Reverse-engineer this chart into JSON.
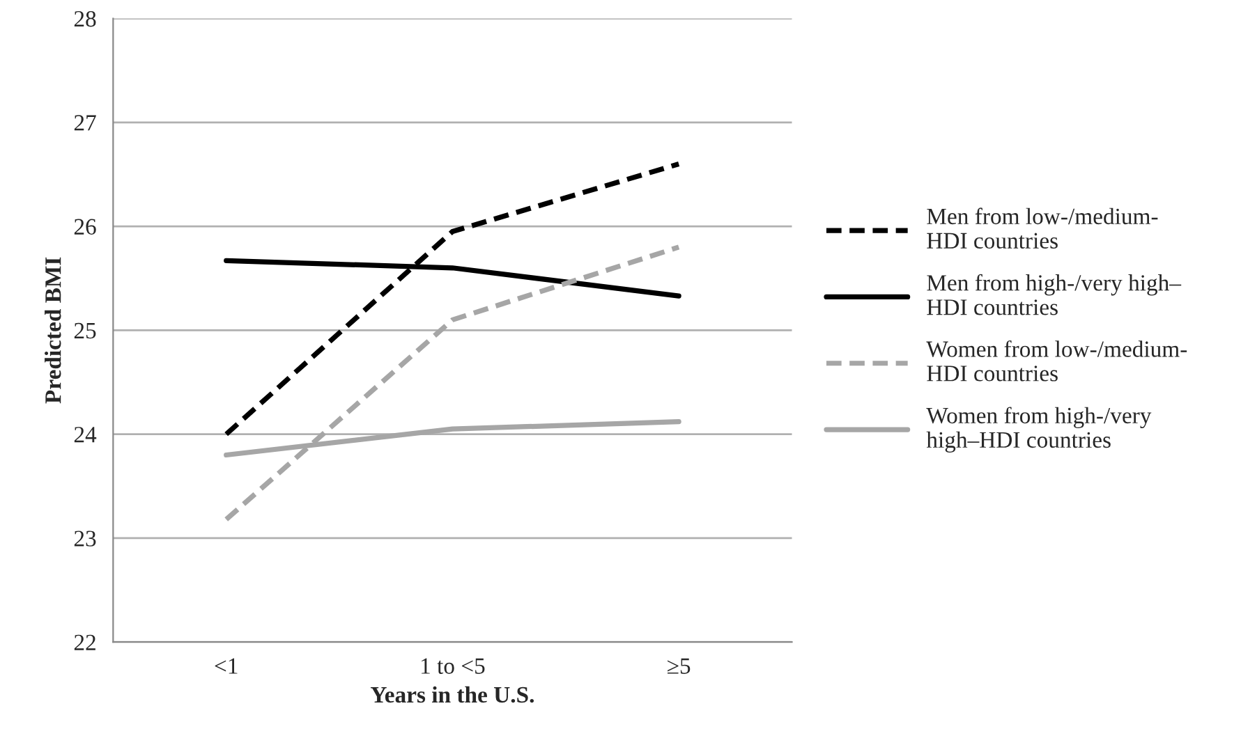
{
  "chart_data": {
    "type": "line",
    "xlabel": "Years in the U.S.",
    "ylabel": "Predicted BMI",
    "categories": [
      "<1",
      "1 to <5",
      "≥5"
    ],
    "series": [
      {
        "name": "Men from low-/medium-\nHDI countries",
        "color": "#000000",
        "line_style": "dashed",
        "values": [
          24.0,
          25.95,
          26.6
        ]
      },
      {
        "name": "Men from high-/very high–\nHDI countries",
        "color": "#000000",
        "line_style": "solid",
        "values": [
          25.67,
          25.6,
          25.33
        ]
      },
      {
        "name": "Women from low-/medium-\nHDI countries",
        "color": "#a6a6a6",
        "line_style": "dashed",
        "values": [
          23.18,
          25.1,
          25.8
        ]
      },
      {
        "name": "Women from high-/very\nhigh–HDI countries",
        "color": "#a6a6a6",
        "line_style": "solid",
        "values": [
          23.8,
          24.05,
          24.12
        ]
      }
    ],
    "ylim": [
      22,
      28
    ],
    "yticks": [
      22,
      23,
      24,
      25,
      26,
      27,
      28
    ],
    "grid": "y",
    "legend": "right",
    "marker": "none"
  }
}
